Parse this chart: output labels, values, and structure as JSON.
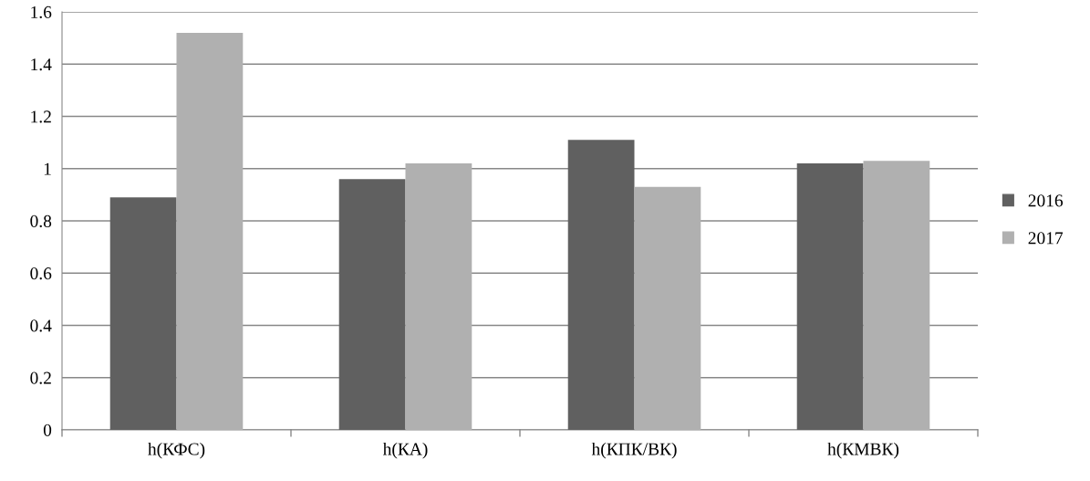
{
  "chart_data": {
    "type": "bar",
    "categories": [
      "h(КФС)",
      "h(КА)",
      "h(КПК/ВК)",
      "h(КМВК)"
    ],
    "series": [
      {
        "name": "2016",
        "color": "#606060",
        "values": [
          0.89,
          0.96,
          1.11,
          1.02
        ]
      },
      {
        "name": "2017",
        "color": "#b0b0b0",
        "values": [
          1.52,
          1.02,
          0.93,
          1.03
        ]
      }
    ],
    "ylim": [
      0,
      1.6
    ],
    "yticks": [
      0,
      {
        "value": 0.2,
        "label": "0.2"
      },
      {
        "value": 0.4,
        "label": "0.4"
      },
      {
        "value": 0.6,
        "label": "0.6"
      },
      {
        "value": 0.8,
        "label": "0.8"
      },
      1,
      {
        "value": 1.2,
        "label": "1.2"
      },
      {
        "value": 1.4,
        "label": "1.4"
      },
      {
        "value": 1.6,
        "label": "1.6"
      }
    ],
    "grid": "y",
    "legend": "right"
  }
}
